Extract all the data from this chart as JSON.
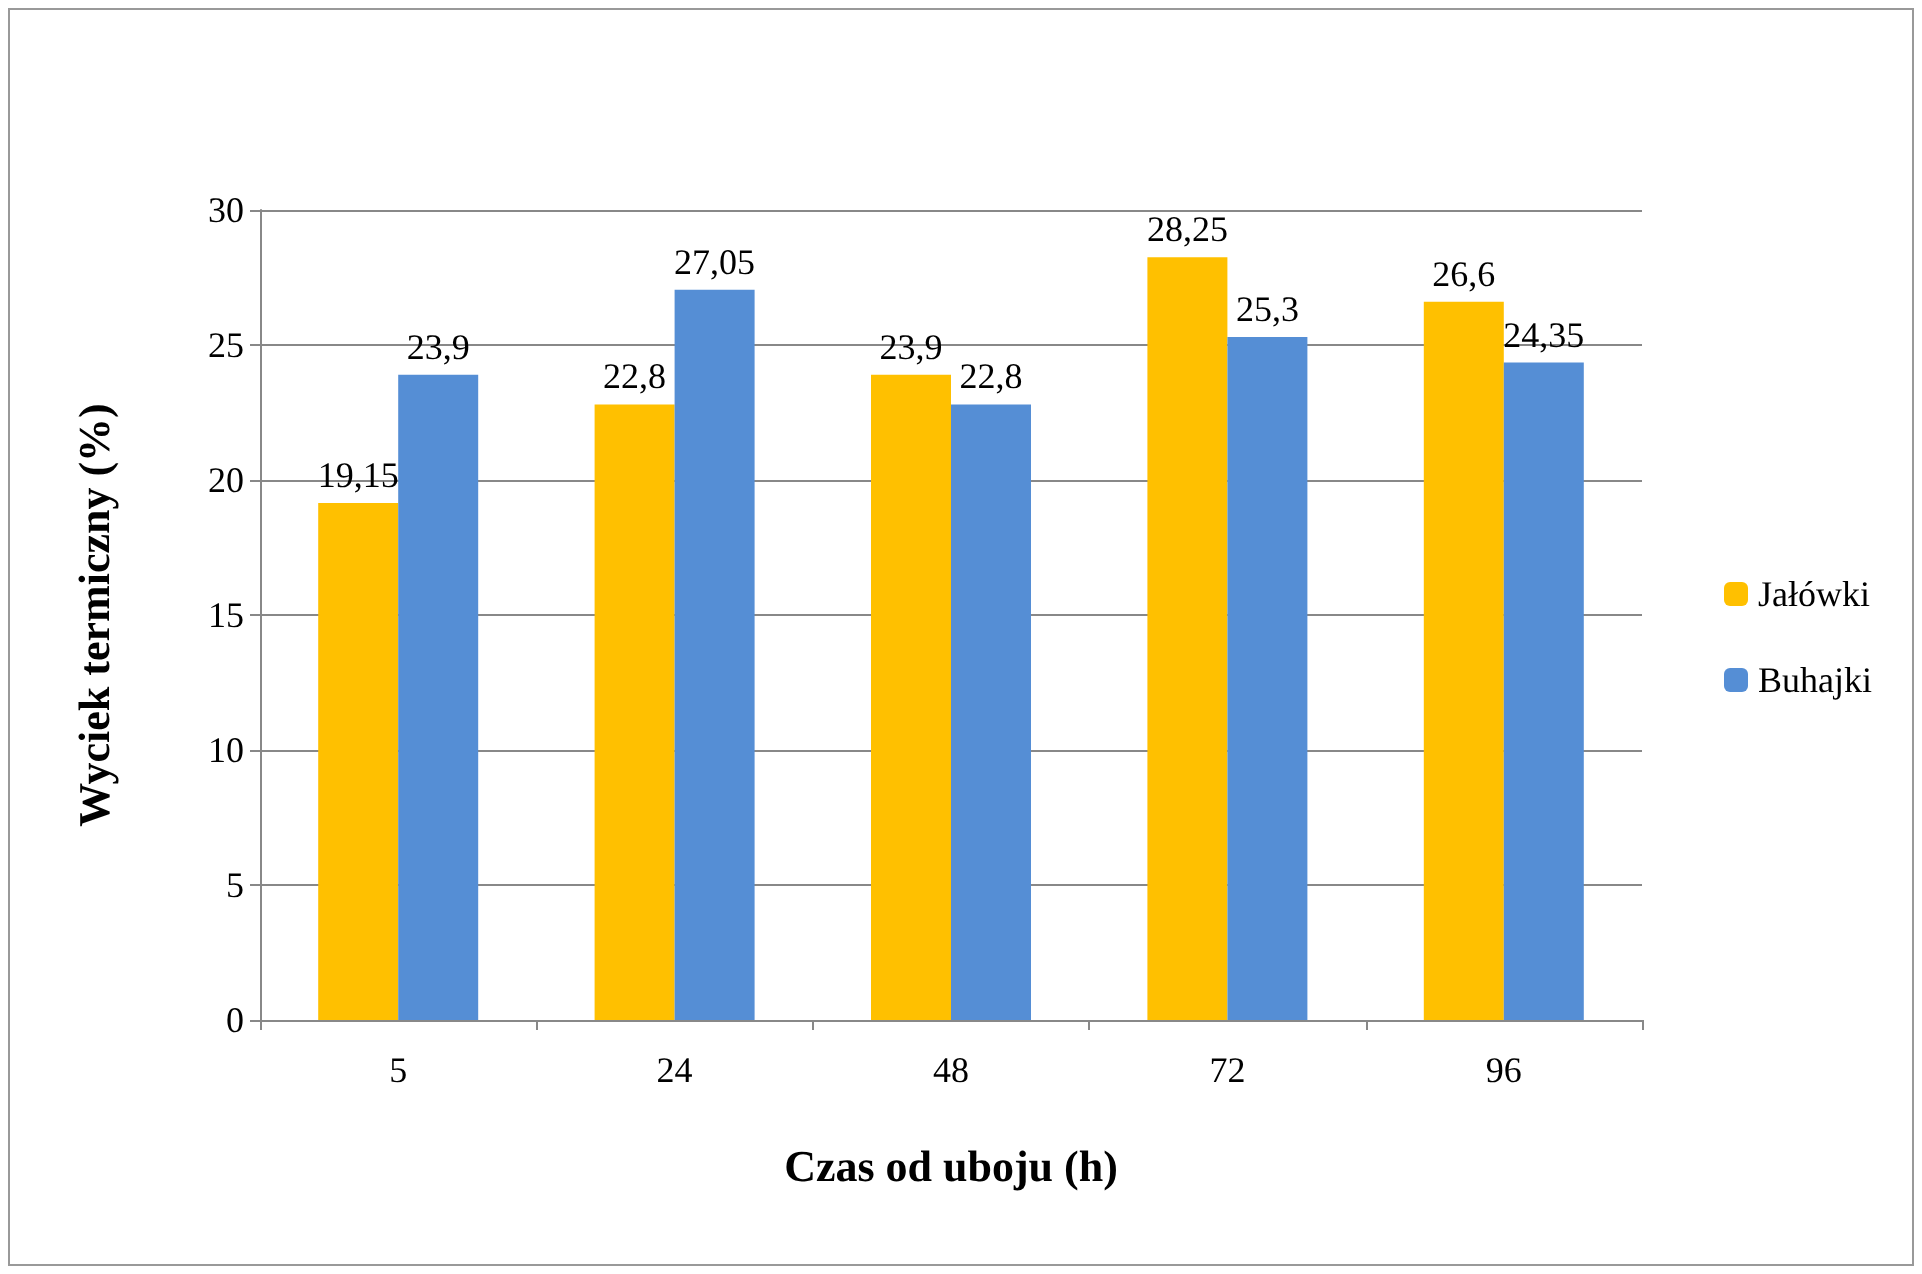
{
  "chart_data": {
    "type": "bar",
    "xlabel": "Czas od uboju (h)",
    "ylabel": "Wyciek termiczny (%)",
    "categories": [
      "5",
      "24",
      "48",
      "72",
      "96"
    ],
    "series": [
      {
        "name": "Jałówki",
        "color": "#ffc000",
        "values": [
          19.15,
          22.8,
          23.9,
          28.25,
          26.6
        ],
        "value_labels": [
          "19,15",
          "22,8",
          "23,9",
          "28,25",
          "26,6"
        ]
      },
      {
        "name": "Buhajki",
        "color": "#558ed5",
        "values": [
          23.9,
          27.05,
          22.8,
          25.3,
          24.35
        ],
        "value_labels": [
          "23,9",
          "27,05",
          "22,8",
          "25,3",
          "24,35"
        ]
      }
    ],
    "ylim": [
      0,
      30
    ],
    "yticks": [
      0,
      5,
      10,
      15,
      20,
      25,
      30
    ],
    "grid": "y",
    "legend": "right"
  }
}
